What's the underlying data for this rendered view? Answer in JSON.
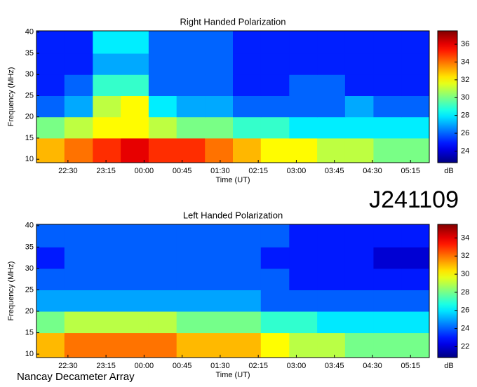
{
  "chart_data": [
    {
      "type": "heatmap",
      "title": "Right Handed Polarization",
      "xlabel": "Time (UT)",
      "ylabel": "Frequency (MHz)",
      "colorbar_label": "dB",
      "xlim": [
        21.88,
        29.62
      ],
      "xticks": [
        {
          "value": 22.5,
          "label": "22:30"
        },
        {
          "value": 23.25,
          "label": "23:15"
        },
        {
          "value": 24,
          "label": "00:00"
        },
        {
          "value": 24.75,
          "label": "00:45"
        },
        {
          "value": 25.5,
          "label": "01:30"
        },
        {
          "value": 26.25,
          "label": "02:15"
        },
        {
          "value": 27,
          "label": "03:00"
        },
        {
          "value": 27.75,
          "label": "03:45"
        },
        {
          "value": 28.5,
          "label": "04:30"
        },
        {
          "value": 29.25,
          "label": "05:15"
        }
      ],
      "ylim": [
        9.2,
        40.3
      ],
      "yticks": [
        10,
        15,
        20,
        25,
        30,
        35,
        40
      ],
      "clim": [
        22.7,
        37.5
      ],
      "cticks": [
        24,
        26,
        28,
        30,
        32,
        34,
        36
      ],
      "x_edges": [
        21.88,
        22.43,
        22.99,
        23.54,
        24.09,
        24.64,
        25.2,
        25.75,
        26.3,
        26.86,
        27.41,
        27.96,
        28.52,
        29.07,
        29.62
      ],
      "y_edges": [
        9.2,
        15,
        20,
        25,
        30,
        35,
        40.3
      ],
      "z": [
        [
          33,
          34,
          35,
          36,
          35,
          35,
          34,
          33,
          32,
          32,
          31,
          31,
          30,
          30
        ],
        [
          30,
          31,
          32,
          32,
          31,
          30,
          30,
          29,
          29,
          28,
          28,
          28,
          28,
          28
        ],
        [
          26,
          27,
          31,
          32,
          28,
          27,
          27,
          26,
          26,
          26,
          26,
          27,
          26,
          26
        ],
        [
          25,
          26,
          29,
          29,
          26,
          26,
          26,
          25,
          25,
          26,
          26,
          25,
          25,
          25
        ],
        [
          25,
          25,
          27,
          27,
          26,
          26,
          26,
          25,
          25,
          25,
          25,
          25,
          25,
          25
        ],
        [
          25,
          25,
          28,
          28,
          26,
          26,
          26,
          25,
          25,
          25,
          25,
          25,
          25,
          25
        ]
      ]
    },
    {
      "type": "heatmap",
      "title": "Left Handed Polarization",
      "xlabel": "Time (UT)",
      "ylabel": "Frequency (MHz)",
      "colorbar_label": "dB",
      "xlim": [
        21.88,
        29.62
      ],
      "xticks": [
        {
          "value": 22.5,
          "label": "22:30"
        },
        {
          "value": 23.25,
          "label": "23:15"
        },
        {
          "value": 24,
          "label": "00:00"
        },
        {
          "value": 24.75,
          "label": "00:45"
        },
        {
          "value": 25.5,
          "label": "01:30"
        },
        {
          "value": 26.25,
          "label": "02:15"
        },
        {
          "value": 27,
          "label": "03:00"
        },
        {
          "value": 27.75,
          "label": "03:45"
        },
        {
          "value": 28.5,
          "label": "04:30"
        },
        {
          "value": 29.25,
          "label": "05:15"
        }
      ],
      "ylim": [
        9.2,
        40.3
      ],
      "yticks": [
        10,
        15,
        20,
        25,
        30,
        35,
        40
      ],
      "clim": [
        20.8,
        35.5
      ],
      "cticks": [
        22,
        24,
        26,
        28,
        30,
        32,
        34
      ],
      "x_edges": [
        21.88,
        22.43,
        22.99,
        23.54,
        24.09,
        24.64,
        25.2,
        25.75,
        26.3,
        26.86,
        27.41,
        27.96,
        28.52,
        29.07,
        29.62
      ],
      "y_edges": [
        9.2,
        15,
        20,
        25,
        30,
        35,
        40.3
      ],
      "z": [
        [
          31,
          32,
          32,
          32,
          32,
          31,
          31,
          31,
          30,
          29,
          29,
          28,
          28,
          28
        ],
        [
          28,
          29,
          29,
          29,
          29,
          28,
          28,
          28,
          27,
          27,
          26,
          26,
          26,
          26
        ],
        [
          25,
          25,
          25,
          25,
          25,
          25,
          25,
          25,
          24,
          24,
          24,
          24,
          24,
          24
        ],
        [
          24,
          24,
          24,
          24,
          24,
          24,
          24,
          24,
          24,
          23,
          23,
          23,
          23,
          23
        ],
        [
          23,
          24,
          24,
          24,
          24,
          24,
          24,
          24,
          23,
          23,
          23,
          23,
          22,
          22
        ],
        [
          24,
          24,
          24,
          24,
          24,
          24,
          24,
          24,
          24,
          23,
          23,
          23,
          23,
          23
        ]
      ]
    }
  ],
  "observation_id": "J241109",
  "instrument": "Nancay Decameter Array"
}
